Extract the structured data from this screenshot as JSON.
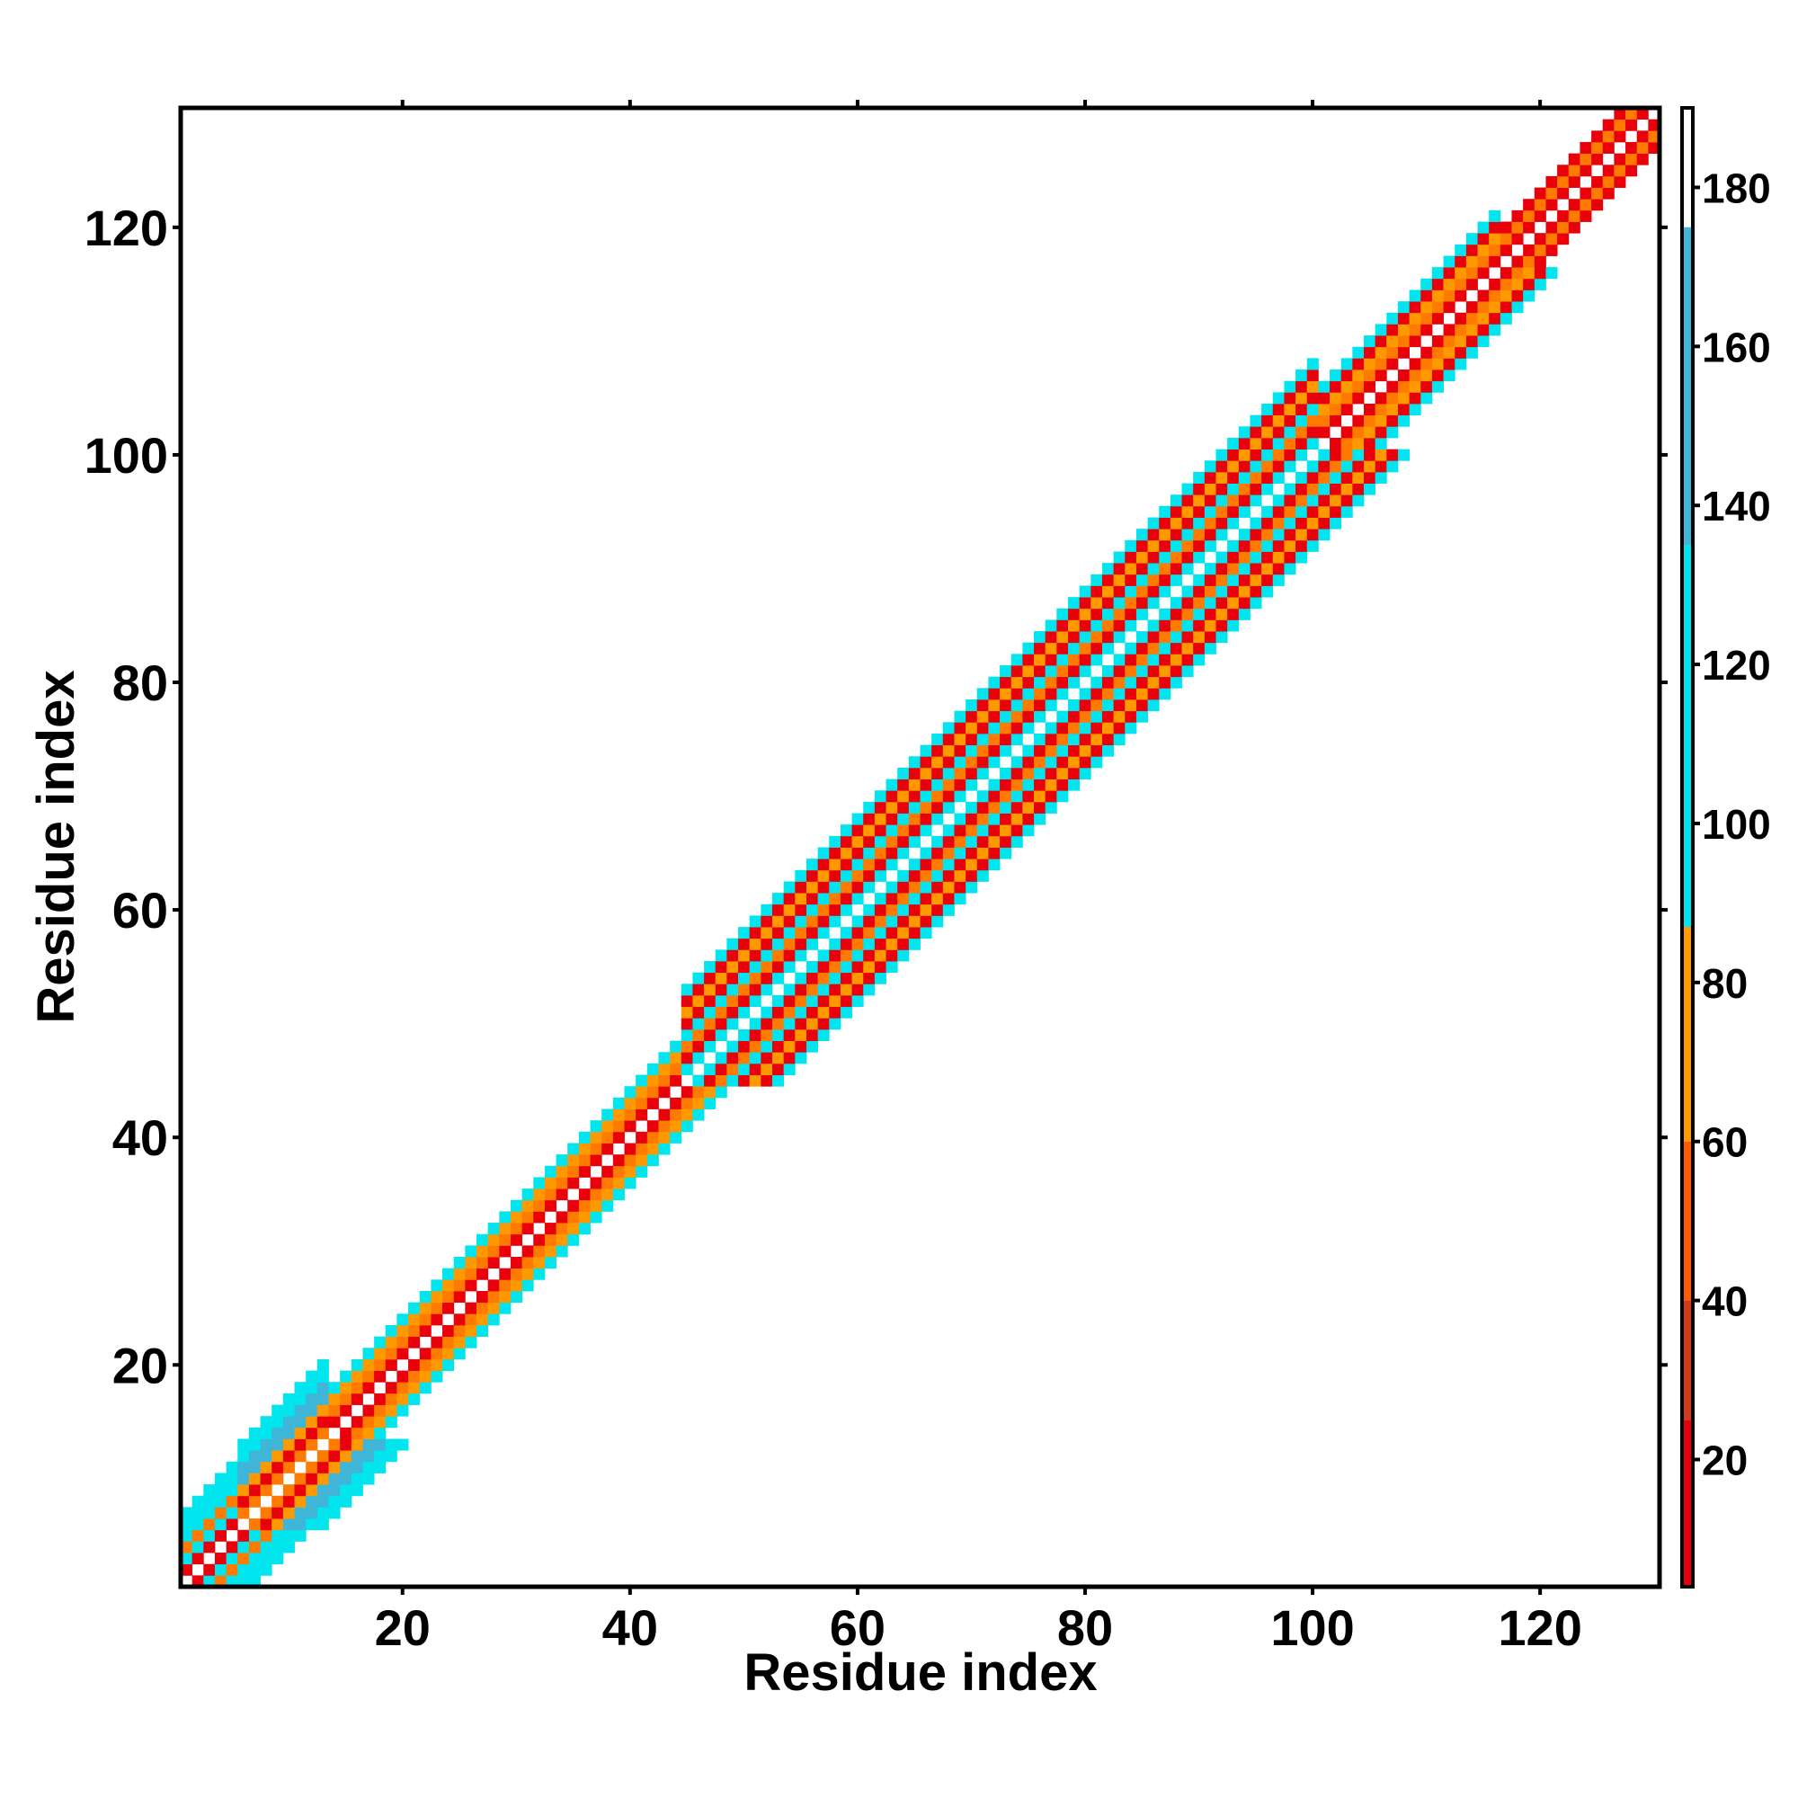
{
  "chart_data": {
    "type": "heatmap",
    "title": "",
    "xlabel": "Residue index",
    "ylabel": "Residue index",
    "xlim": [
      0.5,
      130.5
    ],
    "ylim": [
      0.5,
      130.5
    ],
    "x_ticks": [
      20,
      40,
      60,
      80,
      100,
      120
    ],
    "y_ticks": [
      20,
      40,
      60,
      80,
      100,
      120
    ],
    "x_tick_labels": [
      "20",
      "40",
      "60",
      "80",
      "100",
      "120"
    ],
    "y_tick_labels": [
      "20",
      "40",
      "60",
      "80",
      "100",
      "120"
    ],
    "grid": false,
    "legend": "none",
    "diagonal_value": "blank",
    "colorbar": {
      "placement": "right",
      "range": [
        4,
        190
      ],
      "ticks": [
        20,
        40,
        60,
        80,
        100,
        120,
        140,
        160,
        180
      ],
      "tick_labels": [
        "20",
        "40",
        "60",
        "80",
        "100",
        "120",
        "140",
        "160",
        "180"
      ],
      "stops": [
        {
          "from": 4,
          "to": 25,
          "color": "#e8000b"
        },
        {
          "from": 25,
          "to": 40,
          "color": "#d03a1a"
        },
        {
          "from": 40,
          "to": 60,
          "color": "#ff5a00"
        },
        {
          "from": 60,
          "to": 87,
          "color": "#ff9900"
        },
        {
          "from": 87,
          "to": 135,
          "color": "#00e5ee"
        },
        {
          "from": 135,
          "to": 175,
          "color": "#3fb6d8"
        },
        {
          "from": 175,
          "to": 190,
          "color": "#ffffff"
        }
      ]
    },
    "cell_colors": {
      "1": "#e8000b",
      "2": "#ff7a00",
      "3": "#ff9900",
      "4": "#00e5ee",
      "5": "#3fb6d8"
    },
    "band_profile": [
      {
        "from": 1,
        "to": 5,
        "pattern": [
          1,
          4,
          2,
          4,
          4,
          4
        ]
      },
      {
        "from": 6,
        "to": 13,
        "pattern": [
          2,
          1,
          3,
          5,
          5,
          4,
          4
        ]
      },
      {
        "from": 14,
        "to": 44,
        "pattern": [
          1,
          2,
          3,
          4
        ]
      },
      {
        "from": 45,
        "to": 100,
        "pattern": [
          4,
          1,
          2,
          4,
          1,
          3,
          1,
          4
        ]
      },
      {
        "from": 101,
        "to": 116,
        "pattern": [
          1,
          2,
          3,
          1,
          4
        ]
      },
      {
        "from": 117,
        "to": 130,
        "pattern": [
          1,
          2,
          1
        ]
      }
    ]
  }
}
